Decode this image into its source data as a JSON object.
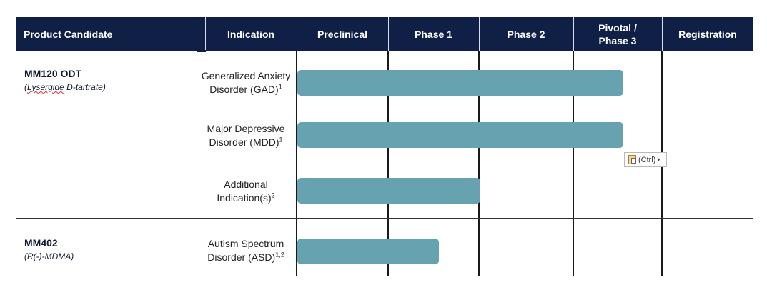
{
  "header": {
    "product_candidate": "Product Candidate",
    "indication": "Indication",
    "preclinical": "Preclinical",
    "phase1": "Phase 1",
    "phase2": "Phase 2",
    "pivotal": "Pivotal /\nPhase 3",
    "registration": "Registration"
  },
  "products": [
    {
      "name": "MM120 ODT",
      "sub_prefix": "(",
      "sub_flagged": "Lysergide",
      "sub_rest": " D-tartrate)",
      "indications": [
        {
          "line1": "Generalized Anxiety",
          "line2": "Disorder (GAD)",
          "sup": "1",
          "progress_stage_fraction": 0.92
        },
        {
          "line1": "Major Depressive",
          "line2": "Disorder (MDD)",
          "sup": "1",
          "progress_stage_fraction": 0.92
        },
        {
          "line1": "Additional",
          "line2": "Indication(s)",
          "sup": "2",
          "progress_stage_fraction": 0.51
        }
      ]
    },
    {
      "name": "MM402",
      "sub": "(R(-)-MDMA)",
      "indications": [
        {
          "line1": "Autism Spectrum",
          "line2": "Disorder (ASD)",
          "sup": "1,2",
          "progress_stage_fraction": 0.4
        }
      ]
    }
  ],
  "paste_options": {
    "label": "(Ctrl)",
    "icon": "clipboard-icon"
  },
  "colors": {
    "header_bg": "#0f1f45",
    "bar": "#66a2b0"
  }
}
